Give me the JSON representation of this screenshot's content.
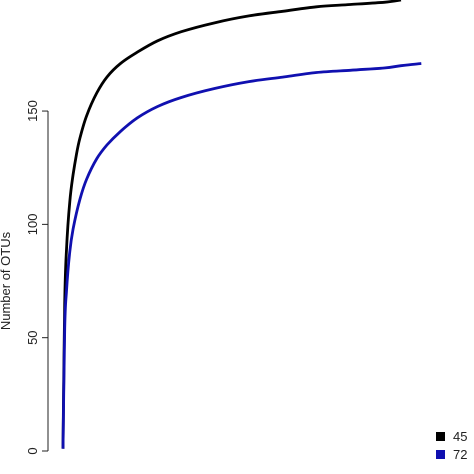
{
  "chart_data": {
    "type": "line",
    "title": "",
    "xlabel": "",
    "ylabel": "Number of OTUs",
    "ylim": [
      0,
      199
    ],
    "yticks": [
      0,
      50,
      100,
      150
    ],
    "xlim": [
      0,
      1
    ],
    "grid": false,
    "legend_position": "bottom-right",
    "series": [
      {
        "name": "45",
        "color": "#000000",
        "x": [
          0,
          0.005,
          0.01,
          0.02,
          0.03,
          0.04,
          0.05,
          0.07,
          0.1,
          0.13,
          0.17,
          0.22,
          0.28,
          0.35,
          0.45,
          0.55,
          0.65,
          0.75,
          0.85,
          0.95,
          1.0
        ],
        "y": [
          1,
          65,
          88,
          110,
          122,
          131,
          138,
          148,
          158,
          165,
          171,
          176,
          181,
          185,
          189,
          192,
          194,
          196,
          197,
          198,
          199
        ]
      },
      {
        "name": "72",
        "color": "#1010b0",
        "x": [
          0,
          0.005,
          0.01,
          0.02,
          0.03,
          0.05,
          0.07,
          0.1,
          0.13,
          0.17,
          0.22,
          0.28,
          0.35,
          0.45,
          0.55,
          0.65,
          0.75,
          0.85,
          0.95,
          1.0,
          1.06
        ],
        "y": [
          1,
          54,
          70,
          88,
          98,
          111,
          120,
          129,
          135,
          141,
          147,
          152,
          156,
          160,
          163,
          165,
          167,
          168,
          169,
          170,
          171
        ]
      }
    ]
  }
}
